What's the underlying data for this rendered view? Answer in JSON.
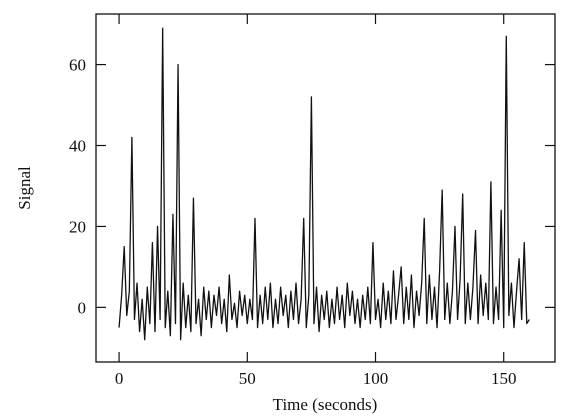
{
  "chart_data": {
    "type": "line",
    "x_label": "Time (seconds)",
    "y_label": "Signal",
    "xlim": [
      -9,
      170
    ],
    "ylim": [
      -13.5,
      72.5
    ],
    "xticks": [
      0,
      50,
      100,
      150
    ],
    "yticks": [
      0,
      20,
      40,
      60
    ],
    "color": "#111111",
    "x": [
      0,
      1,
      2,
      3,
      4,
      5,
      6,
      7,
      8,
      9,
      10,
      11,
      12,
      13,
      14,
      15,
      16,
      17,
      18,
      19,
      20,
      21,
      22,
      23,
      24,
      25,
      26,
      27,
      28,
      29,
      30,
      31,
      32,
      33,
      34,
      35,
      36,
      37,
      38,
      39,
      40,
      41,
      42,
      43,
      44,
      45,
      46,
      47,
      48,
      49,
      50,
      51,
      52,
      53,
      54,
      55,
      56,
      57,
      58,
      59,
      60,
      61,
      62,
      63,
      64,
      65,
      66,
      67,
      68,
      69,
      70,
      71,
      72,
      73,
      74,
      75,
      76,
      77,
      78,
      79,
      80,
      81,
      82,
      83,
      84,
      85,
      86,
      87,
      88,
      89,
      90,
      91,
      92,
      93,
      94,
      95,
      96,
      97,
      98,
      99,
      100,
      101,
      102,
      103,
      104,
      105,
      106,
      107,
      108,
      109,
      110,
      111,
      112,
      113,
      114,
      115,
      116,
      117,
      118,
      119,
      120,
      121,
      122,
      123,
      124,
      125,
      126,
      127,
      128,
      129,
      130,
      131,
      132,
      133,
      134,
      135,
      136,
      137,
      138,
      139,
      140,
      141,
      142,
      143,
      144,
      145,
      146,
      147,
      148,
      149,
      150,
      151,
      152,
      153,
      154,
      155,
      156,
      157,
      158,
      159,
      160
    ],
    "values": [
      -5,
      3,
      15,
      -2,
      4,
      42,
      -3,
      6,
      -6,
      2,
      -8,
      5,
      -4,
      16,
      -6,
      20,
      -3,
      69,
      -5,
      4,
      -7,
      23,
      -4,
      60,
      -8,
      6,
      -5,
      3,
      -6,
      27,
      -4,
      2,
      -7,
      5,
      -3,
      4,
      -5,
      3,
      -2,
      5,
      -4,
      2,
      -6,
      8,
      -3,
      1,
      -5,
      4,
      -2,
      3,
      -4,
      2,
      -3,
      22,
      -5,
      3,
      -4,
      5,
      -3,
      6,
      -5,
      2,
      -4,
      5,
      -2,
      3,
      -5,
      4,
      -3,
      6,
      -4,
      2,
      22,
      -5,
      3,
      52,
      -4,
      5,
      -6,
      3,
      -3,
      4,
      -5,
      2,
      -4,
      5,
      -3,
      3,
      -5,
      6,
      -2,
      4,
      -4,
      2,
      -5,
      3,
      -3,
      5,
      -4,
      16,
      -3,
      2,
      -5,
      6,
      -3,
      4,
      -4,
      9,
      -3,
      3,
      10,
      -4,
      5,
      -3,
      8,
      -5,
      4,
      -2,
      6,
      22,
      -4,
      8,
      -3,
      5,
      -5,
      9,
      29,
      -3,
      6,
      -4,
      4,
      20,
      -3,
      7,
      28,
      -4,
      6,
      -3,
      5,
      19,
      -4,
      8,
      -2,
      6,
      -3,
      31,
      -4,
      5,
      -3,
      24,
      -5,
      67,
      -2,
      6,
      -5,
      4,
      12,
      -3,
      16,
      -4,
      -3
    ]
  }
}
